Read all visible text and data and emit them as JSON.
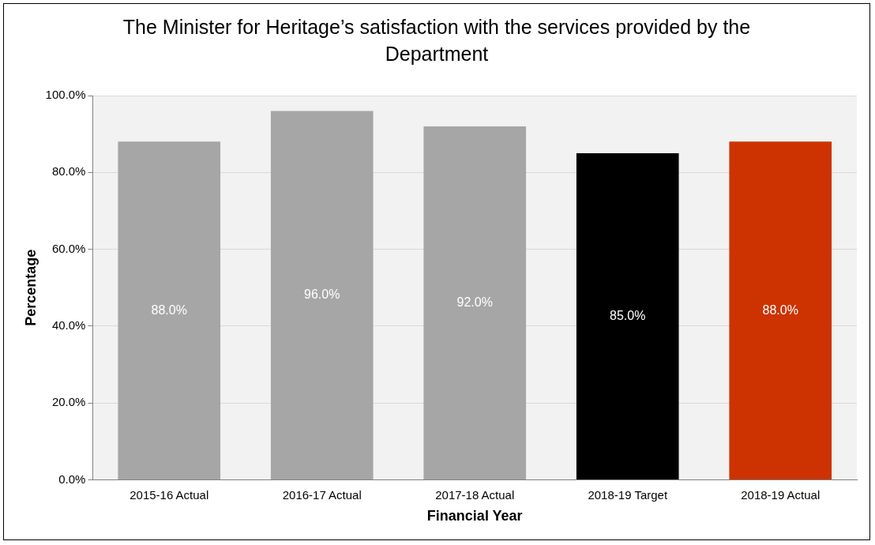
{
  "chart_data": {
    "type": "bar",
    "title": "The Minister for Heritage’s satisfaction with the services provided by the Department",
    "xlabel": "Financial Year",
    "ylabel": "Percentage",
    "categories": [
      "2015-16 Actual",
      "2016-17 Actual",
      "2017-18 Actual",
      "2018-19 Target",
      "2018-19 Actual"
    ],
    "values": [
      88,
      96,
      92,
      85,
      88
    ],
    "colors": [
      "#a6a6a6",
      "#a6a6a6",
      "#a6a6a6",
      "#000000",
      "#cc3300"
    ],
    "value_labels": [
      "88.0%",
      "96.0%",
      "92.0%",
      "85.0%",
      "88.0%"
    ],
    "ylim": [
      0,
      100
    ],
    "yticks": [
      {
        "value": 0,
        "label": "0.0%"
      },
      {
        "value": 20,
        "label": "20.0%"
      },
      {
        "value": 40,
        "label": "40.0%"
      },
      {
        "value": 60,
        "label": "60.0%"
      },
      {
        "value": 80,
        "label": "80.0%"
      },
      {
        "value": 100,
        "label": "100.0%"
      }
    ],
    "grid": "y",
    "legend": false
  }
}
